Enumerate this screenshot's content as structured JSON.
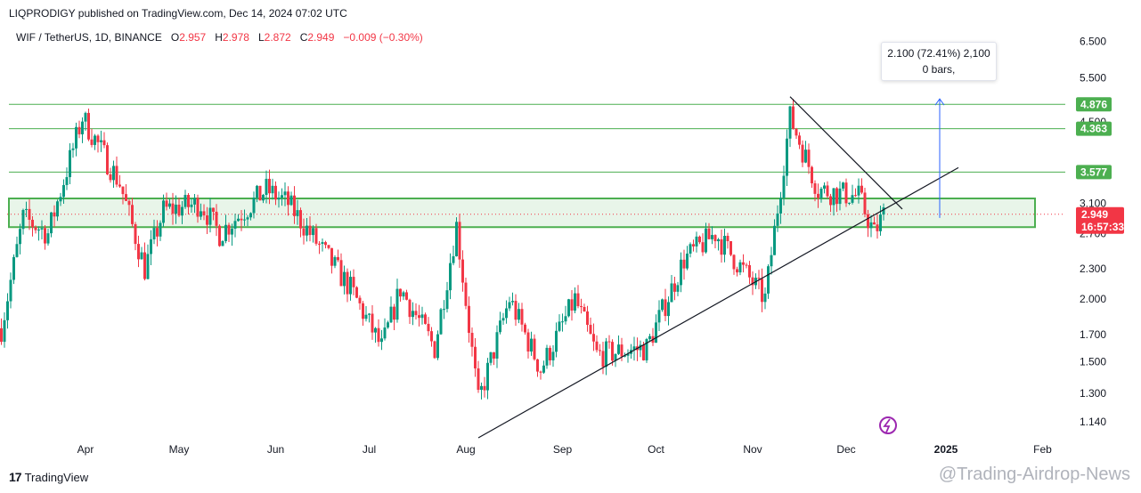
{
  "header": {
    "published": "LIQPRODIGY published on TradingView.com, Dec 14, 2024 07:02 UTC"
  },
  "legend": {
    "symbol": "WIF / TetherUS, 1D, BINANCE",
    "open_label": "O",
    "open": "2.957",
    "high_label": "H",
    "high": "2.978",
    "low_label": "L",
    "low": "2.872",
    "close_label": "C",
    "close": "2.949",
    "change": "−0.009 (−0.30%)"
  },
  "measure": {
    "line1": "2.100 (72.41%) 2,100",
    "line2": "0 bars,"
  },
  "footer": {
    "brand": "TradingView",
    "watermark": "@Trading-Airdrop-News"
  },
  "colors": {
    "up": "#089981",
    "down": "#f23645",
    "level": "#4caf50",
    "zone_fill": "#e8f5e9",
    "arrow": "#2962ff"
  },
  "chart_data": {
    "type": "candlestick",
    "scale": "log",
    "x_tick_labels": [
      "Apr",
      "May",
      "Jun",
      "Jul",
      "Aug",
      "Sep",
      "Oct",
      "Nov",
      "Dec",
      "2025",
      "Feb"
    ],
    "y_tick_labels": [
      "6.500",
      "5.500",
      "4.500",
      "3.100",
      "2.700",
      "2.300",
      "2.000",
      "1.700",
      "1.500",
      "1.300",
      "1.140"
    ],
    "y_tick_values": [
      6.5,
      5.5,
      4.5,
      3.1,
      2.7,
      2.3,
      2.0,
      1.7,
      1.5,
      1.3,
      1.14
    ],
    "y_range": [
      1.06,
      7.1
    ],
    "horizontal_levels": [
      {
        "value": 4.876,
        "label": "4.876"
      },
      {
        "value": 4.363,
        "label": "4.363"
      },
      {
        "value": 3.577,
        "label": "3.577"
      }
    ],
    "zone": {
      "low": 2.78,
      "high": 3.17
    },
    "last_price": {
      "value": 2.949,
      "label": "2.949",
      "countdown": "16:57:33"
    },
    "trendlines": [
      {
        "from": [
          "Aug 5",
          1.06
        ],
        "to": [
          "Jan 5",
          3.65
        ]
      },
      {
        "from": [
          "Nov 13",
          5.05
        ],
        "to": [
          "Dec 19",
          3.02
        ]
      }
    ],
    "measure_arrow": {
      "from": 2.9,
      "to": 5.0
    },
    "ohlc_path_keypoints": [
      {
        "date": "Mar 5",
        "close": 1.75
      },
      {
        "date": "Mar 12",
        "close": 2.9
      },
      {
        "date": "Mar 20",
        "close": 2.7
      },
      {
        "date": "Mar 31",
        "close": 4.6
      },
      {
        "date": "Apr 12",
        "close": 3.4
      },
      {
        "date": "Apr 20",
        "close": 2.3
      },
      {
        "date": "Apr 26",
        "close": 3.0
      },
      {
        "date": "May 8",
        "close": 3.1
      },
      {
        "date": "May 14",
        "close": 2.7
      },
      {
        "date": "May 29",
        "close": 3.3
      },
      {
        "date": "Jun 5",
        "close": 3.1
      },
      {
        "date": "Jun 12",
        "close": 2.7
      },
      {
        "date": "Jun 25",
        "close": 2.1
      },
      {
        "date": "Jul 5",
        "close": 1.6
      },
      {
        "date": "Jul 11",
        "close": 2.1
      },
      {
        "date": "Jul 22",
        "close": 1.6
      },
      {
        "date": "Jul 29",
        "close": 2.8
      },
      {
        "date": "Aug 5",
        "close": 1.25
      },
      {
        "date": "Aug 15",
        "close": 2.0
      },
      {
        "date": "Aug 25",
        "close": 1.45
      },
      {
        "date": "Sep 5",
        "close": 2.0
      },
      {
        "date": "Sep 12",
        "close": 1.55
      },
      {
        "date": "Sep 28",
        "close": 1.6
      },
      {
        "date": "Oct 10",
        "close": 2.4
      },
      {
        "date": "Oct 20",
        "close": 2.7
      },
      {
        "date": "Nov 5",
        "close": 2.0
      },
      {
        "date": "Nov 13",
        "close": 4.6
      },
      {
        "date": "Nov 22",
        "close": 3.3
      },
      {
        "date": "Dec 5",
        "close": 3.2
      },
      {
        "date": "Dec 10",
        "close": 2.7
      },
      {
        "date": "Dec 13",
        "close": 2.949
      }
    ]
  }
}
